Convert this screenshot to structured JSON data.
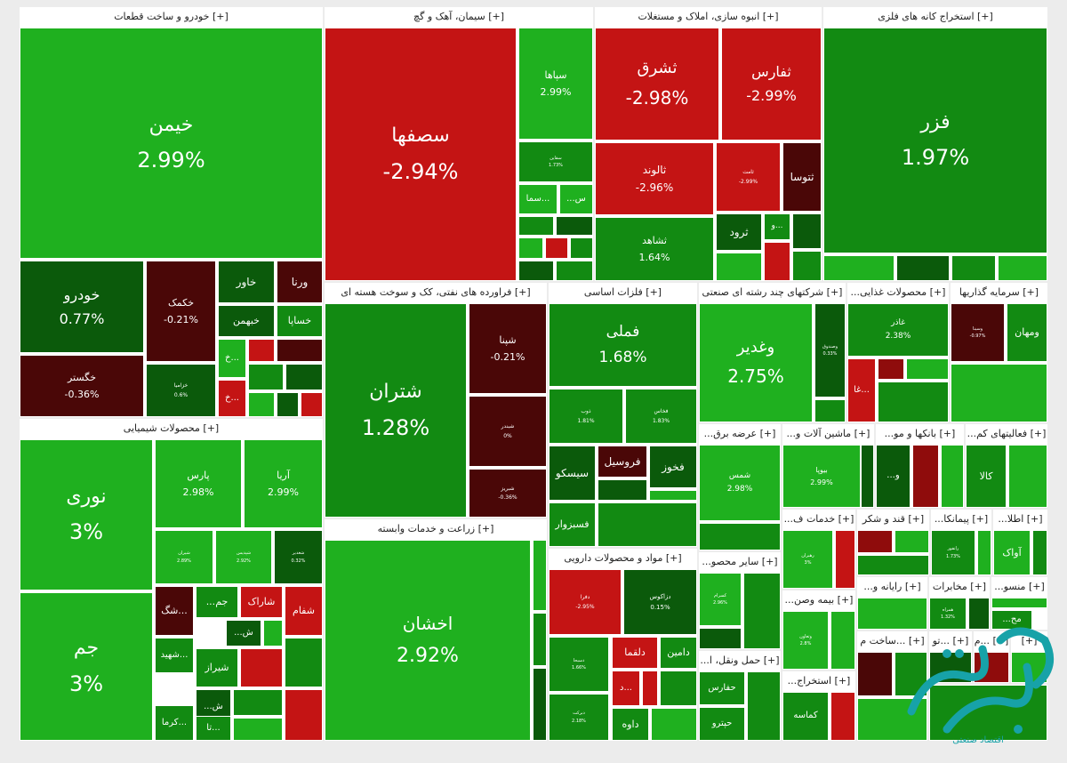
{
  "colors": {
    "pos_light": "#1fb01f",
    "pos_mid": "#128a12",
    "pos_dark": "#0b5a0b",
    "neg_light": "#c41414",
    "neg_mid": "#8f0c0c",
    "neg_dark": "#4a0707",
    "watermark": "#17a2a8"
  },
  "chart_data": {
    "type": "heatmap",
    "sectors": [
      {
        "name": "[+] خودرو و ساخت قطعات",
        "stocks": [
          {
            "symbol": "خیمن",
            "change": "2.99%"
          },
          {
            "symbol": "خودرو",
            "change": "0.77%"
          },
          {
            "symbol": "خکمک",
            "change": "-0.21%"
          },
          {
            "symbol": "خگستر",
            "change": "-0.36%"
          },
          {
            "symbol": "خزامیا",
            "change": "0.6%"
          },
          {
            "symbol": "خاور",
            "change": ""
          },
          {
            "symbol": "ورنا",
            "change": ""
          },
          {
            "symbol": "خبهمن",
            "change": ""
          },
          {
            "symbol": "خساپا",
            "change": ""
          },
          {
            "symbol": "خ...",
            "change": ""
          },
          {
            "symbol": "خ...",
            "change": ""
          }
        ]
      },
      {
        "name": "[+] سیمان، آهک و گچ",
        "stocks": [
          {
            "symbol": "سصفها",
            "change": "-2.94%"
          },
          {
            "symbol": "سپاها",
            "change": "2.99%"
          },
          {
            "symbol": "سقاین",
            "change": "1.73%"
          },
          {
            "symbol": "سما...",
            "change": ""
          },
          {
            "symbol": "...س",
            "change": ""
          }
        ]
      },
      {
        "name": "[+] انبوه سازی، املاک و مستغلات",
        "stocks": [
          {
            "symbol": "ثشرق",
            "change": "-2.98%"
          },
          {
            "symbol": "ثفارس",
            "change": "-2.99%"
          },
          {
            "symbol": "ثالوند",
            "change": "-2.96%"
          },
          {
            "symbol": "ثامت",
            "change": "-2.99%"
          },
          {
            "symbol": "ثتوسا",
            "change": ""
          },
          {
            "symbol": "ثشاهد",
            "change": "1.64%"
          },
          {
            "symbol": "ثرود",
            "change": ""
          },
          {
            "symbol": "و...",
            "change": ""
          }
        ]
      },
      {
        "name": "[+] استخراج کانه های فلزی",
        "stocks": [
          {
            "symbol": "فزر",
            "change": "1.97%"
          }
        ]
      },
      {
        "name": "[+] محصولات شیمیایی",
        "stocks": [
          {
            "symbol": "نوری",
            "change": "3%"
          },
          {
            "symbol": "جم",
            "change": "3%"
          },
          {
            "symbol": "پارس",
            "change": "2.98%"
          },
          {
            "symbol": "آریا",
            "change": "2.99%"
          },
          {
            "symbol": "شیران",
            "change": "2.89%"
          },
          {
            "symbol": "شپدیس",
            "change": "2.92%"
          },
          {
            "symbol": "شغدیر",
            "change": "0.32%"
          },
          {
            "symbol": "شگ...",
            "change": ""
          },
          {
            "symbol": "...جم",
            "change": ""
          },
          {
            "symbol": "شاراک",
            "change": ""
          },
          {
            "symbol": "شفام",
            "change": ""
          },
          {
            "symbol": "...ش",
            "change": ""
          },
          {
            "symbol": "شیراز",
            "change": ""
          },
          {
            "symbol": "شهید...",
            "change": ""
          },
          {
            "symbol": "...ش",
            "change": ""
          },
          {
            "symbol": "کرما...",
            "change": ""
          },
          {
            "symbol": "تا...",
            "change": ""
          }
        ]
      },
      {
        "name": "[+] فراورده های نفتی، کک و سوخت هسته ای",
        "stocks": [
          {
            "symbol": "شتران",
            "change": "1.28%"
          },
          {
            "symbol": "شپنا",
            "change": "-0.21%"
          },
          {
            "symbol": "شبندر",
            "change": "0%"
          },
          {
            "symbol": "شبریز",
            "change": "-0.36%"
          }
        ]
      },
      {
        "name": "[+] فلزات اساسی",
        "stocks": [
          {
            "symbol": "فملی",
            "change": "1.68%"
          },
          {
            "symbol": "ذوب",
            "change": "1.81%"
          },
          {
            "symbol": "فخاس",
            "change": "1.83%"
          },
          {
            "symbol": "فروسیل",
            "change": ""
          },
          {
            "symbol": "فخوز",
            "change": ""
          },
          {
            "symbol": "سیسکو",
            "change": ""
          },
          {
            "symbol": "فسبزوار",
            "change": ""
          }
        ]
      },
      {
        "name": "[+] شرکتهای چند رشته ای صنعتی",
        "stocks": [
          {
            "symbol": "وغدیر",
            "change": "2.75%"
          },
          {
            "symbol": "وصندوق",
            "change": "0.33%"
          }
        ]
      },
      {
        "name": "[+] محصولات غذایی...",
        "stocks": [
          {
            "symbol": "غاذر",
            "change": "2.38%"
          },
          {
            "symbol": "غا...",
            "change": ""
          }
        ]
      },
      {
        "name": "[+] سرمایه گذاریها",
        "stocks": [
          {
            "symbol": "وسینا",
            "change": "-0.97%"
          },
          {
            "symbol": "ومهان",
            "change": ""
          }
        ]
      },
      {
        "name": "[+] زراعت و خدمات وابسته",
        "stocks": [
          {
            "symbol": "اخشان",
            "change": "2.92%"
          }
        ]
      },
      {
        "name": "[+] مواد و محصولات دارویی",
        "stocks": [
          {
            "symbol": "دفرا",
            "change": "-2.95%"
          },
          {
            "symbol": "دزاکوس",
            "change": "0.15%"
          },
          {
            "symbol": "دلقما",
            "change": ""
          },
          {
            "symbol": "دامین",
            "change": ""
          },
          {
            "symbol": "دسبحا",
            "change": "1.66%"
          },
          {
            "symbol": "د...",
            "change": ""
          },
          {
            "symbol": "دبرکت",
            "change": "2.18%"
          },
          {
            "symbol": "داوه",
            "change": ""
          }
        ]
      },
      {
        "name": "[+] عرضه برق...",
        "stocks": [
          {
            "symbol": "شمس",
            "change": "2.98%"
          }
        ]
      },
      {
        "name": "[+] ماشین آلات و...",
        "stocks": [
          {
            "symbol": "بیوپا",
            "change": "2.99%"
          }
        ]
      },
      {
        "name": "[+] بانکها و مو...",
        "stocks": [
          {
            "symbol": "...و",
            "change": ""
          }
        ]
      },
      {
        "name": "[+] فعالیتهای کم...",
        "stocks": [
          {
            "symbol": "کالا",
            "change": ""
          }
        ]
      },
      {
        "name": "[+] خدمات ف...",
        "stocks": [
          {
            "symbol": "رهبران",
            "change": "3%"
          }
        ]
      },
      {
        "name": "[+] قند و شکر",
        "stocks": []
      },
      {
        "name": "[+] پیمانکا...",
        "stocks": [
          {
            "symbol": "رانفور",
            "change": "1.73%"
          }
        ]
      },
      {
        "name": "[+] اطلا...",
        "stocks": [
          {
            "symbol": "آواک",
            "change": ""
          }
        ]
      },
      {
        "name": "[+] سایر محصو...",
        "stocks": [
          {
            "symbol": "کسرام",
            "change": "2.96%"
          }
        ]
      },
      {
        "name": "[+] رایانه و...",
        "stocks": []
      },
      {
        "name": "[+] مخابرات",
        "stocks": [
          {
            "symbol": "همراه",
            "change": "1.32%"
          }
        ]
      },
      {
        "name": "[+] منسو...",
        "stocks": [
          {
            "symbol": "...مح",
            "change": ""
          }
        ]
      },
      {
        "name": "[+] بیمه وصن...",
        "stocks": [
          {
            "symbol": "وتعاون",
            "change": "2.8%"
          }
        ]
      },
      {
        "name": "[+] حمل ونقل، ا...",
        "stocks": [
          {
            "symbol": "حفارس",
            "change": ""
          },
          {
            "symbol": "حپترو",
            "change": ""
          }
        ]
      },
      {
        "name": "[+] استخراج...",
        "stocks": [
          {
            "symbol": "کماسه",
            "change": ""
          }
        ]
      },
      {
        "name": "[+] ...ساخت م",
        "stocks": []
      },
      {
        "name": "[+] ...تو",
        "stocks": []
      },
      {
        "name": "[+] ...م",
        "stocks": []
      },
      {
        "name": "[+]",
        "stocks": []
      }
    ]
  },
  "watermark": {
    "text": "اقتصاد صنعتی"
  }
}
